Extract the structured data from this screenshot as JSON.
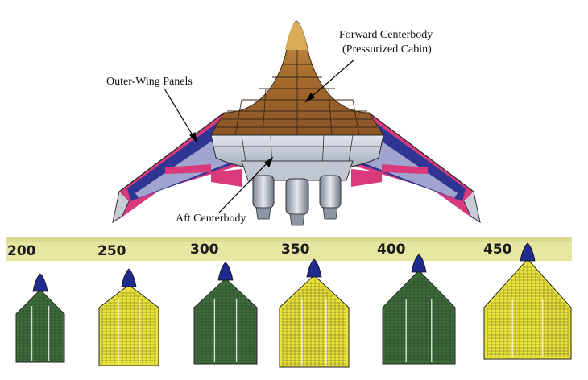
{
  "labels": {
    "forward_line1": "Forward Centerbody",
    "forward_line2": "(Pressurized Cabin)",
    "outer_wing": "Outer-Wing Panels",
    "aft": "Aft Centerbody"
  },
  "capacities": [
    "200",
    "250",
    "300",
    "350",
    "400",
    "450"
  ],
  "cabin_colors": [
    "#3d6b3a",
    "#e8e23a",
    "#3d6b3a",
    "#e8e23a",
    "#3d6b3a",
    "#e8e23a"
  ],
  "colors": {
    "band": "#e6e6a2",
    "cabin_brown": "#a0652c",
    "nose_gold": "#d4a24a",
    "wing_blue": "#2e3592",
    "wing_pink": "#d93a7c",
    "aft_silver": "#c5ccd8",
    "nose_cone_blue": "#1e2a8c"
  }
}
